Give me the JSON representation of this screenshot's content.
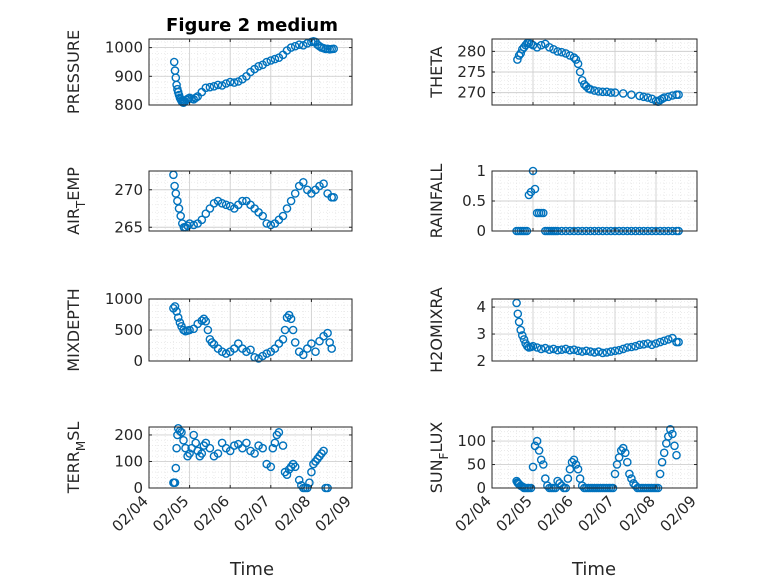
{
  "chart_data": {
    "title": "Figure 2 medium",
    "xlabel": "Time",
    "x_tick_labels": [
      "02/04",
      "02/05",
      "02/06",
      "02/07",
      "02/08",
      "02/09"
    ],
    "marker": "circle",
    "marker_color": "#0072BD",
    "grid": "major and minor, dotted",
    "panels": [
      {
        "type": "scatter",
        "name": "PRESSURE",
        "ylabel_main": "PRESSURE",
        "ylabel_sub": "",
        "ylabel_tail": "",
        "ylim": [
          800,
          1030
        ],
        "yticks": [
          "800",
          "900",
          "1000"
        ],
        "ytick_values": [
          800,
          900,
          1000
        ],
        "x": [
          4.62,
          4.64,
          4.66,
          4.68,
          4.7,
          4.72,
          4.74,
          4.76,
          4.78,
          4.8,
          4.82,
          4.85,
          4.88,
          4.92,
          4.96,
          5.0,
          5.05,
          5.1,
          5.15,
          5.2,
          5.3,
          5.4,
          5.5,
          5.6,
          5.7,
          5.8,
          5.9,
          6.0,
          6.1,
          6.2,
          6.3,
          6.4,
          6.5,
          6.6,
          6.7,
          6.8,
          6.9,
          7.0,
          7.1,
          7.2,
          7.3,
          7.4,
          7.5,
          7.6,
          7.7,
          7.8,
          7.9,
          8.0,
          8.05,
          8.1,
          8.15,
          8.2,
          8.25,
          8.3,
          8.35,
          8.4,
          8.45,
          8.5,
          8.55
        ],
        "y": [
          950,
          920,
          895,
          870,
          855,
          845,
          835,
          825,
          820,
          815,
          810,
          808,
          812,
          818,
          822,
          825,
          822,
          820,
          825,
          830,
          845,
          860,
          862,
          865,
          870,
          868,
          875,
          880,
          878,
          882,
          890,
          900,
          915,
          925,
          935,
          940,
          950,
          955,
          960,
          965,
          975,
          990,
          1000,
          1005,
          1010,
          1008,
          1015,
          1020,
          1022,
          1020,
          1010,
          1005,
          1000,
          998,
          995,
          996,
          994,
          995,
          996
        ]
      },
      {
        "type": "scatter",
        "name": "THETA",
        "ylabel_main": "THETA",
        "ylabel_sub": "",
        "ylabel_tail": "",
        "ylim": [
          267,
          283
        ],
        "yticks": [
          "270",
          "275",
          "280"
        ],
        "ytick_values": [
          270,
          275,
          280
        ],
        "x": [
          4.62,
          4.66,
          4.7,
          4.74,
          4.78,
          4.82,
          4.86,
          4.9,
          4.95,
          5.0,
          5.1,
          5.2,
          5.3,
          5.4,
          5.5,
          5.6,
          5.7,
          5.8,
          5.9,
          6.0,
          6.05,
          6.1,
          6.15,
          6.2,
          6.25,
          6.3,
          6.35,
          6.4,
          6.5,
          6.6,
          6.7,
          6.8,
          6.9,
          7.0,
          7.2,
          7.4,
          7.6,
          7.7,
          7.8,
          7.9,
          8.0,
          8.05,
          8.1,
          8.15,
          8.2,
          8.3,
          8.4,
          8.5,
          8.55
        ],
        "y": [
          278,
          279,
          279.5,
          280.5,
          281,
          281.5,
          282,
          282,
          281.8,
          281.5,
          281,
          281.5,
          281.8,
          281,
          280.5,
          280,
          279.8,
          279.5,
          279,
          278.5,
          278,
          277,
          275,
          273,
          272,
          271.5,
          271,
          270.8,
          270.5,
          270.3,
          270.2,
          270.2,
          270,
          270,
          269.8,
          269.5,
          269.2,
          269,
          268.8,
          268.5,
          268,
          267.8,
          268.2,
          268.5,
          268.8,
          269,
          269.3,
          269.5,
          269.5
        ]
      },
      {
        "type": "scatter",
        "name": "AIR_TEMP",
        "ylabel_main": "AIR",
        "ylabel_sub": "T",
        "ylabel_tail": "EMP",
        "ylim": [
          264.5,
          272.5
        ],
        "yticks": [
          "265",
          "270"
        ],
        "ytick_values": [
          265,
          270
        ],
        "x": [
          4.6,
          4.63,
          4.66,
          4.7,
          4.74,
          4.78,
          4.82,
          4.86,
          4.9,
          4.95,
          5.0,
          5.1,
          5.2,
          5.3,
          5.4,
          5.5,
          5.6,
          5.7,
          5.8,
          5.9,
          6.0,
          6.1,
          6.2,
          6.3,
          6.4,
          6.5,
          6.6,
          6.7,
          6.8,
          6.9,
          7.0,
          7.1,
          7.2,
          7.3,
          7.4,
          7.5,
          7.6,
          7.7,
          7.8,
          7.9,
          8.0,
          8.1,
          8.2,
          8.3,
          8.4,
          8.5,
          8.55
        ],
        "y": [
          272,
          270.5,
          269.5,
          268.5,
          267.5,
          266.5,
          265.5,
          265,
          265,
          265.2,
          265.5,
          265.3,
          265.5,
          266,
          266.8,
          267.5,
          268.2,
          268.5,
          268.2,
          268,
          267.8,
          267.5,
          268,
          268.5,
          268.5,
          268,
          267.5,
          267,
          266.5,
          265.5,
          265.3,
          265.5,
          266,
          266.5,
          267.5,
          268.5,
          269.5,
          270.5,
          271,
          270,
          269.5,
          270,
          270.5,
          270.8,
          269.5,
          269,
          269
        ]
      },
      {
        "type": "scatter",
        "name": "RAINFALL",
        "ylabel_main": "RAINFALL",
        "ylabel_sub": "",
        "ylabel_tail": "",
        "ylim": [
          0,
          1
        ],
        "yticks": [
          "0",
          "0.5",
          "1"
        ],
        "ytick_values": [
          0,
          0.5,
          1
        ],
        "x": [
          4.6,
          4.65,
          4.7,
          4.75,
          4.8,
          4.85,
          4.9,
          4.95,
          5.0,
          5.05,
          5.1,
          5.15,
          5.2,
          5.25,
          5.3,
          5.35,
          5.4,
          5.45,
          5.5,
          5.55,
          5.6,
          5.7,
          5.8,
          5.9,
          6.0,
          6.1,
          6.2,
          6.3,
          6.4,
          6.5,
          6.6,
          6.7,
          6.8,
          6.9,
          7.0,
          7.1,
          7.2,
          7.3,
          7.4,
          7.5,
          7.6,
          7.7,
          7.8,
          7.9,
          8.0,
          8.1,
          8.2,
          8.3,
          8.4,
          8.5,
          8.55
        ],
        "y": [
          0,
          0,
          0,
          0,
          0,
          0,
          0.6,
          0.65,
          1.0,
          0.7,
          0.3,
          0.3,
          0.3,
          0.3,
          0,
          0,
          0,
          0,
          0,
          0,
          0,
          0,
          0,
          0,
          0,
          0,
          0,
          0,
          0,
          0,
          0,
          0,
          0,
          0,
          0,
          0,
          0,
          0,
          0,
          0,
          0,
          0,
          0,
          0,
          0,
          0,
          0,
          0,
          0,
          0,
          0
        ]
      },
      {
        "type": "scatter",
        "name": "MIXDEPTH",
        "ylabel_main": "MIXDEPTH",
        "ylabel_sub": "",
        "ylabel_tail": "",
        "ylim": [
          0,
          1000
        ],
        "yticks": [
          "0",
          "500",
          "1000"
        ],
        "ytick_values": [
          0,
          500,
          1000
        ],
        "x": [
          4.6,
          4.64,
          4.68,
          4.72,
          4.76,
          4.8,
          4.85,
          4.9,
          4.95,
          5.0,
          5.1,
          5.2,
          5.3,
          5.35,
          5.4,
          5.45,
          5.5,
          5.55,
          5.6,
          5.7,
          5.8,
          5.9,
          6.0,
          6.1,
          6.2,
          6.3,
          6.4,
          6.5,
          6.6,
          6.7,
          6.8,
          6.9,
          7.0,
          7.1,
          7.2,
          7.3,
          7.35,
          7.4,
          7.45,
          7.5,
          7.55,
          7.6,
          7.7,
          7.8,
          7.9,
          8.0,
          8.1,
          8.2,
          8.3,
          8.4,
          8.45,
          8.5
        ],
        "y": [
          850,
          880,
          800,
          700,
          620,
          560,
          500,
          480,
          490,
          500,
          520,
          600,
          650,
          680,
          640,
          500,
          350,
          300,
          270,
          200,
          150,
          120,
          150,
          200,
          280,
          200,
          150,
          180,
          60,
          40,
          80,
          120,
          150,
          200,
          280,
          350,
          500,
          700,
          740,
          680,
          500,
          300,
          150,
          100,
          200,
          280,
          150,
          320,
          400,
          450,
          300,
          200
        ]
      },
      {
        "type": "scatter",
        "name": "H2OMIXRA",
        "ylabel_main": "H2OMIXRA",
        "ylabel_sub": "",
        "ylabel_tail": "",
        "ylim": [
          2,
          4.3
        ],
        "yticks": [
          "2",
          "3",
          "4"
        ],
        "ytick_values": [
          2,
          3,
          4
        ],
        "x": [
          4.6,
          4.63,
          4.66,
          4.7,
          4.74,
          4.78,
          4.82,
          4.86,
          4.9,
          4.95,
          5.0,
          5.1,
          5.2,
          5.3,
          5.4,
          5.5,
          5.6,
          5.7,
          5.8,
          5.9,
          6.0,
          6.1,
          6.2,
          6.3,
          6.4,
          6.5,
          6.6,
          6.7,
          6.8,
          6.9,
          7.0,
          7.1,
          7.2,
          7.3,
          7.4,
          7.5,
          7.6,
          7.7,
          7.8,
          7.9,
          8.0,
          8.1,
          8.2,
          8.3,
          8.4,
          8.5,
          8.55
        ],
        "y": [
          4.15,
          3.75,
          3.45,
          3.15,
          2.95,
          2.8,
          2.65,
          2.55,
          2.5,
          2.52,
          2.55,
          2.5,
          2.45,
          2.48,
          2.42,
          2.45,
          2.4,
          2.42,
          2.45,
          2.4,
          2.42,
          2.38,
          2.35,
          2.38,
          2.35,
          2.32,
          2.35,
          2.3,
          2.32,
          2.35,
          2.38,
          2.4,
          2.45,
          2.5,
          2.52,
          2.55,
          2.6,
          2.62,
          2.65,
          2.6,
          2.65,
          2.7,
          2.75,
          2.8,
          2.85,
          2.7,
          2.7
        ]
      },
      {
        "type": "scatter",
        "name": "TERR_MSL",
        "ylabel_main": "TERR",
        "ylabel_sub": "M",
        "ylabel_tail": "SL",
        "ylim": [
          0,
          230
        ],
        "yticks": [
          "0",
          "100",
          "200"
        ],
        "ytick_values": [
          0,
          100,
          200
        ],
        "x": [
          4.6,
          4.62,
          4.64,
          4.66,
          4.68,
          4.7,
          4.72,
          4.76,
          4.8,
          4.85,
          4.9,
          4.95,
          5.0,
          5.05,
          5.1,
          5.15,
          5.2,
          5.25,
          5.3,
          5.35,
          5.4,
          5.5,
          5.6,
          5.7,
          5.8,
          5.9,
          6.0,
          6.1,
          6.2,
          6.3,
          6.4,
          6.5,
          6.6,
          6.7,
          6.8,
          6.9,
          7.0,
          7.05,
          7.1,
          7.15,
          7.2,
          7.3,
          7.35,
          7.4,
          7.45,
          7.5,
          7.55,
          7.6,
          7.7,
          7.75,
          7.8,
          7.85,
          7.9,
          7.95,
          8.0,
          8.05,
          8.1,
          8.15,
          8.2,
          8.25,
          8.3,
          8.35,
          8.4
        ],
        "y": [
          20,
          20,
          20,
          75,
          150,
          200,
          225,
          215,
          210,
          180,
          150,
          120,
          130,
          150,
          200,
          170,
          140,
          120,
          130,
          160,
          170,
          150,
          120,
          130,
          170,
          150,
          140,
          160,
          165,
          150,
          170,
          140,
          130,
          160,
          150,
          90,
          80,
          150,
          170,
          200,
          210,
          160,
          60,
          50,
          70,
          80,
          90,
          80,
          30,
          10,
          0,
          0,
          0,
          20,
          60,
          90,
          100,
          110,
          120,
          130,
          140,
          0,
          0
        ]
      },
      {
        "type": "scatter",
        "name": "SUN_FLUX",
        "ylabel_main": "SUN",
        "ylabel_sub": "F",
        "ylabel_tail": "LUX",
        "ylim": [
          0,
          130
        ],
        "yticks": [
          "0",
          "50",
          "100"
        ],
        "ytick_values": [
          0,
          50,
          100
        ],
        "x": [
          4.6,
          4.62,
          4.64,
          4.66,
          4.7,
          4.74,
          4.78,
          4.82,
          4.86,
          4.9,
          4.95,
          5.0,
          5.05,
          5.1,
          5.15,
          5.2,
          5.25,
          5.3,
          5.35,
          5.4,
          5.45,
          5.5,
          5.55,
          5.6,
          5.65,
          5.7,
          5.75,
          5.8,
          5.85,
          5.9,
          5.95,
          6.0,
          6.05,
          6.1,
          6.15,
          6.2,
          6.25,
          6.3,
          6.35,
          6.4,
          6.45,
          6.5,
          6.55,
          6.6,
          6.65,
          6.7,
          6.75,
          6.8,
          6.85,
          6.9,
          6.95,
          7.0,
          7.05,
          7.1,
          7.15,
          7.2,
          7.25,
          7.3,
          7.35,
          7.4,
          7.45,
          7.5,
          7.55,
          7.6,
          7.65,
          7.7,
          7.75,
          7.8,
          7.85,
          7.9,
          7.95,
          8.0,
          8.05,
          8.1,
          8.15,
          8.2,
          8.25,
          8.3,
          8.35,
          8.4,
          8.45,
          8.5
        ],
        "y": [
          15,
          12,
          10,
          8,
          5,
          3,
          0,
          0,
          0,
          0,
          0,
          45,
          90,
          100,
          80,
          60,
          50,
          20,
          5,
          0,
          0,
          0,
          0,
          15,
          10,
          5,
          0,
          0,
          20,
          40,
          55,
          60,
          50,
          40,
          20,
          5,
          0,
          0,
          0,
          0,
          0,
          0,
          0,
          0,
          0,
          0,
          0,
          0,
          0,
          0,
          0,
          30,
          50,
          65,
          80,
          85,
          75,
          55,
          30,
          20,
          10,
          5,
          0,
          0,
          0,
          0,
          0,
          0,
          0,
          0,
          0,
          0,
          0,
          30,
          55,
          75,
          95,
          110,
          125,
          115,
          90,
          70
        ]
      }
    ]
  }
}
